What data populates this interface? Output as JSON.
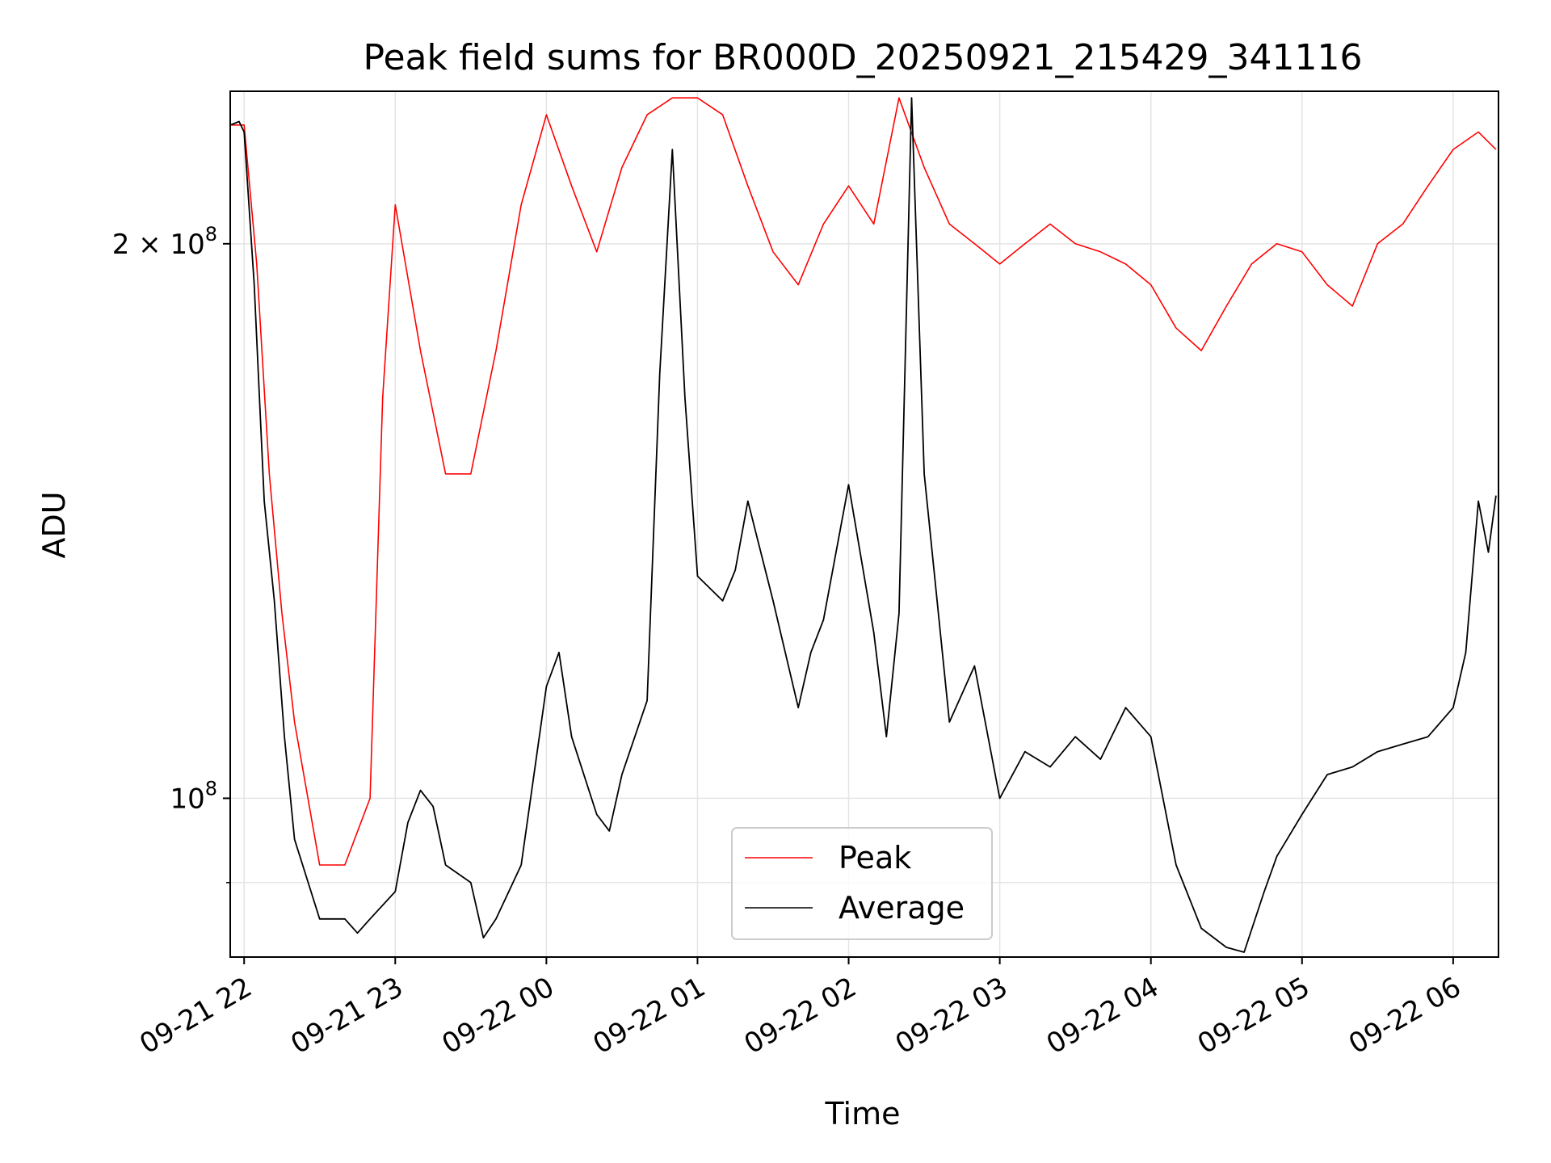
{
  "chart_data": {
    "type": "line",
    "title": "Peak field sums for BR000D_20250921_215429_341116",
    "xlabel": "Time",
    "ylabel": "ADU",
    "y_scale": "log",
    "xlim": [
      "2025-09-21T21:54:29",
      "2025-09-22T06:18:00"
    ],
    "ylim": [
      82000000,
      242000000
    ],
    "x_ticks": [
      {
        "value": "2025-09-21T22:00:00",
        "label": "09-21 22"
      },
      {
        "value": "2025-09-21T23:00:00",
        "label": "09-21 23"
      },
      {
        "value": "2025-09-22T00:00:00",
        "label": "09-22 00"
      },
      {
        "value": "2025-09-22T01:00:00",
        "label": "09-22 01"
      },
      {
        "value": "2025-09-22T02:00:00",
        "label": "09-22 02"
      },
      {
        "value": "2025-09-22T03:00:00",
        "label": "09-22 03"
      },
      {
        "value": "2025-09-22T04:00:00",
        "label": "09-22 04"
      },
      {
        "value": "2025-09-22T05:00:00",
        "label": "09-22 05"
      },
      {
        "value": "2025-09-22T06:00:00",
        "label": "09-22 06"
      }
    ],
    "y_major_ticks": [
      {
        "value": 100000000,
        "base": "10",
        "exp": "8",
        "mant": ""
      },
      {
        "value": 200000000,
        "base": "10",
        "exp": "8",
        "mant": "2 × "
      }
    ],
    "y_minor_ticks": [
      90000000
    ],
    "grid": true,
    "legend_position": "bottom-center",
    "series": [
      {
        "name": "Peak",
        "color": "#ff0000",
        "x": [
          "2025-09-21T21:55:00",
          "2025-09-21T22:00:00",
          "2025-09-21T22:05:00",
          "2025-09-21T22:10:00",
          "2025-09-21T22:15:00",
          "2025-09-21T22:20:00",
          "2025-09-21T22:30:00",
          "2025-09-21T22:40:00",
          "2025-09-21T22:50:00",
          "2025-09-21T22:55:00",
          "2025-09-21T23:00:00",
          "2025-09-21T23:10:00",
          "2025-09-21T23:20:00",
          "2025-09-21T23:30:00",
          "2025-09-21T23:40:00",
          "2025-09-21T23:50:00",
          "2025-09-22T00:00:00",
          "2025-09-22T00:10:00",
          "2025-09-22T00:20:00",
          "2025-09-22T00:30:00",
          "2025-09-22T00:40:00",
          "2025-09-22T00:50:00",
          "2025-09-22T01:00:00",
          "2025-09-22T01:10:00",
          "2025-09-22T01:20:00",
          "2025-09-22T01:30:00",
          "2025-09-22T01:40:00",
          "2025-09-22T01:50:00",
          "2025-09-22T02:00:00",
          "2025-09-22T02:10:00",
          "2025-09-22T02:20:00",
          "2025-09-22T02:30:00",
          "2025-09-22T02:40:00",
          "2025-09-22T02:50:00",
          "2025-09-22T03:00:00",
          "2025-09-22T03:10:00",
          "2025-09-22T03:20:00",
          "2025-09-22T03:30:00",
          "2025-09-22T03:40:00",
          "2025-09-22T03:50:00",
          "2025-09-22T04:00:00",
          "2025-09-22T04:10:00",
          "2025-09-22T04:20:00",
          "2025-09-22T04:30:00",
          "2025-09-22T04:40:00",
          "2025-09-22T04:50:00",
          "2025-09-22T05:00:00",
          "2025-09-22T05:10:00",
          "2025-09-22T05:20:00",
          "2025-09-22T05:30:00",
          "2025-09-22T05:40:00",
          "2025-09-22T05:50:00",
          "2025-09-22T06:00:00",
          "2025-09-22T06:10:00",
          "2025-09-22T06:17:00"
        ],
        "y": [
          232000000,
          232000000,
          195000000,
          150000000,
          126000000,
          110000000,
          92000000,
          92000000,
          100000000,
          165000000,
          210000000,
          175000000,
          150000000,
          150000000,
          175000000,
          210000000,
          235000000,
          215000000,
          198000000,
          220000000,
          235000000,
          240000000,
          240000000,
          235000000,
          215000000,
          198000000,
          190000000,
          205000000,
          215000000,
          205000000,
          240000000,
          220000000,
          205000000,
          200000000,
          195000000,
          200000000,
          205000000,
          200000000,
          198000000,
          195000000,
          190000000,
          180000000,
          175000000,
          185000000,
          195000000,
          200000000,
          198000000,
          190000000,
          185000000,
          200000000,
          205000000,
          215000000,
          225000000,
          230000000,
          225000000
        ]
      },
      {
        "name": "Average",
        "color": "#000000",
        "x": [
          "2025-09-21T21:54:30",
          "2025-09-21T21:58:00",
          "2025-09-21T22:00:00",
          "2025-09-21T22:04:00",
          "2025-09-21T22:08:00",
          "2025-09-21T22:12:00",
          "2025-09-21T22:16:00",
          "2025-09-21T22:20:00",
          "2025-09-21T22:30:00",
          "2025-09-21T22:40:00",
          "2025-09-21T22:45:00",
          "2025-09-21T22:50:00",
          "2025-09-21T23:00:00",
          "2025-09-21T23:05:00",
          "2025-09-21T23:10:00",
          "2025-09-21T23:15:00",
          "2025-09-21T23:20:00",
          "2025-09-21T23:30:00",
          "2025-09-21T23:35:00",
          "2025-09-21T23:40:00",
          "2025-09-21T23:50:00",
          "2025-09-22T00:00:00",
          "2025-09-22T00:05:00",
          "2025-09-22T00:10:00",
          "2025-09-22T00:20:00",
          "2025-09-22T00:25:00",
          "2025-09-22T00:30:00",
          "2025-09-22T00:40:00",
          "2025-09-22T00:45:00",
          "2025-09-22T00:50:00",
          "2025-09-22T00:55:00",
          "2025-09-22T01:00:00",
          "2025-09-22T01:10:00",
          "2025-09-22T01:15:00",
          "2025-09-22T01:20:00",
          "2025-09-22T01:30:00",
          "2025-09-22T01:40:00",
          "2025-09-22T01:45:00",
          "2025-09-22T01:50:00",
          "2025-09-22T02:00:00",
          "2025-09-22T02:10:00",
          "2025-09-22T02:15:00",
          "2025-09-22T02:20:00",
          "2025-09-22T02:25:00",
          "2025-09-22T02:30:00",
          "2025-09-22T02:40:00",
          "2025-09-22T02:50:00",
          "2025-09-22T03:00:00",
          "2025-09-22T03:10:00",
          "2025-09-22T03:20:00",
          "2025-09-22T03:30:00",
          "2025-09-22T03:40:00",
          "2025-09-22T03:50:00",
          "2025-09-22T04:00:00",
          "2025-09-22T04:10:00",
          "2025-09-22T04:20:00",
          "2025-09-22T04:30:00",
          "2025-09-22T04:37:00",
          "2025-09-22T04:45:00",
          "2025-09-22T04:50:00",
          "2025-09-22T05:00:00",
          "2025-09-22T05:10:00",
          "2025-09-22T05:20:00",
          "2025-09-22T05:30:00",
          "2025-09-22T05:40:00",
          "2025-09-22T05:50:00",
          "2025-09-22T06:00:00",
          "2025-09-22T06:05:00",
          "2025-09-22T06:10:00",
          "2025-09-22T06:14:00",
          "2025-09-22T06:17:00"
        ],
        "y": [
          232000000,
          233000000,
          230000000,
          190000000,
          145000000,
          128000000,
          108000000,
          95000000,
          86000000,
          86000000,
          84500000,
          86000000,
          89000000,
          97000000,
          101000000,
          99000000,
          92000000,
          90000000,
          84000000,
          86000000,
          92000000,
          115000000,
          120000000,
          108000000,
          98000000,
          96000000,
          103000000,
          113000000,
          170000000,
          225000000,
          165000000,
          132000000,
          128000000,
          133000000,
          145000000,
          128000000,
          112000000,
          120000000,
          125000000,
          148000000,
          123000000,
          108000000,
          126000000,
          240000000,
          150000000,
          110000000,
          118000000,
          100000000,
          106000000,
          104000000,
          108000000,
          105000000,
          112000000,
          108000000,
          92000000,
          85000000,
          83000000,
          82500000,
          89000000,
          93000000,
          98000000,
          103000000,
          104000000,
          106000000,
          107000000,
          108000000,
          112000000,
          120000000,
          145000000,
          136000000,
          146000000
        ]
      }
    ]
  }
}
